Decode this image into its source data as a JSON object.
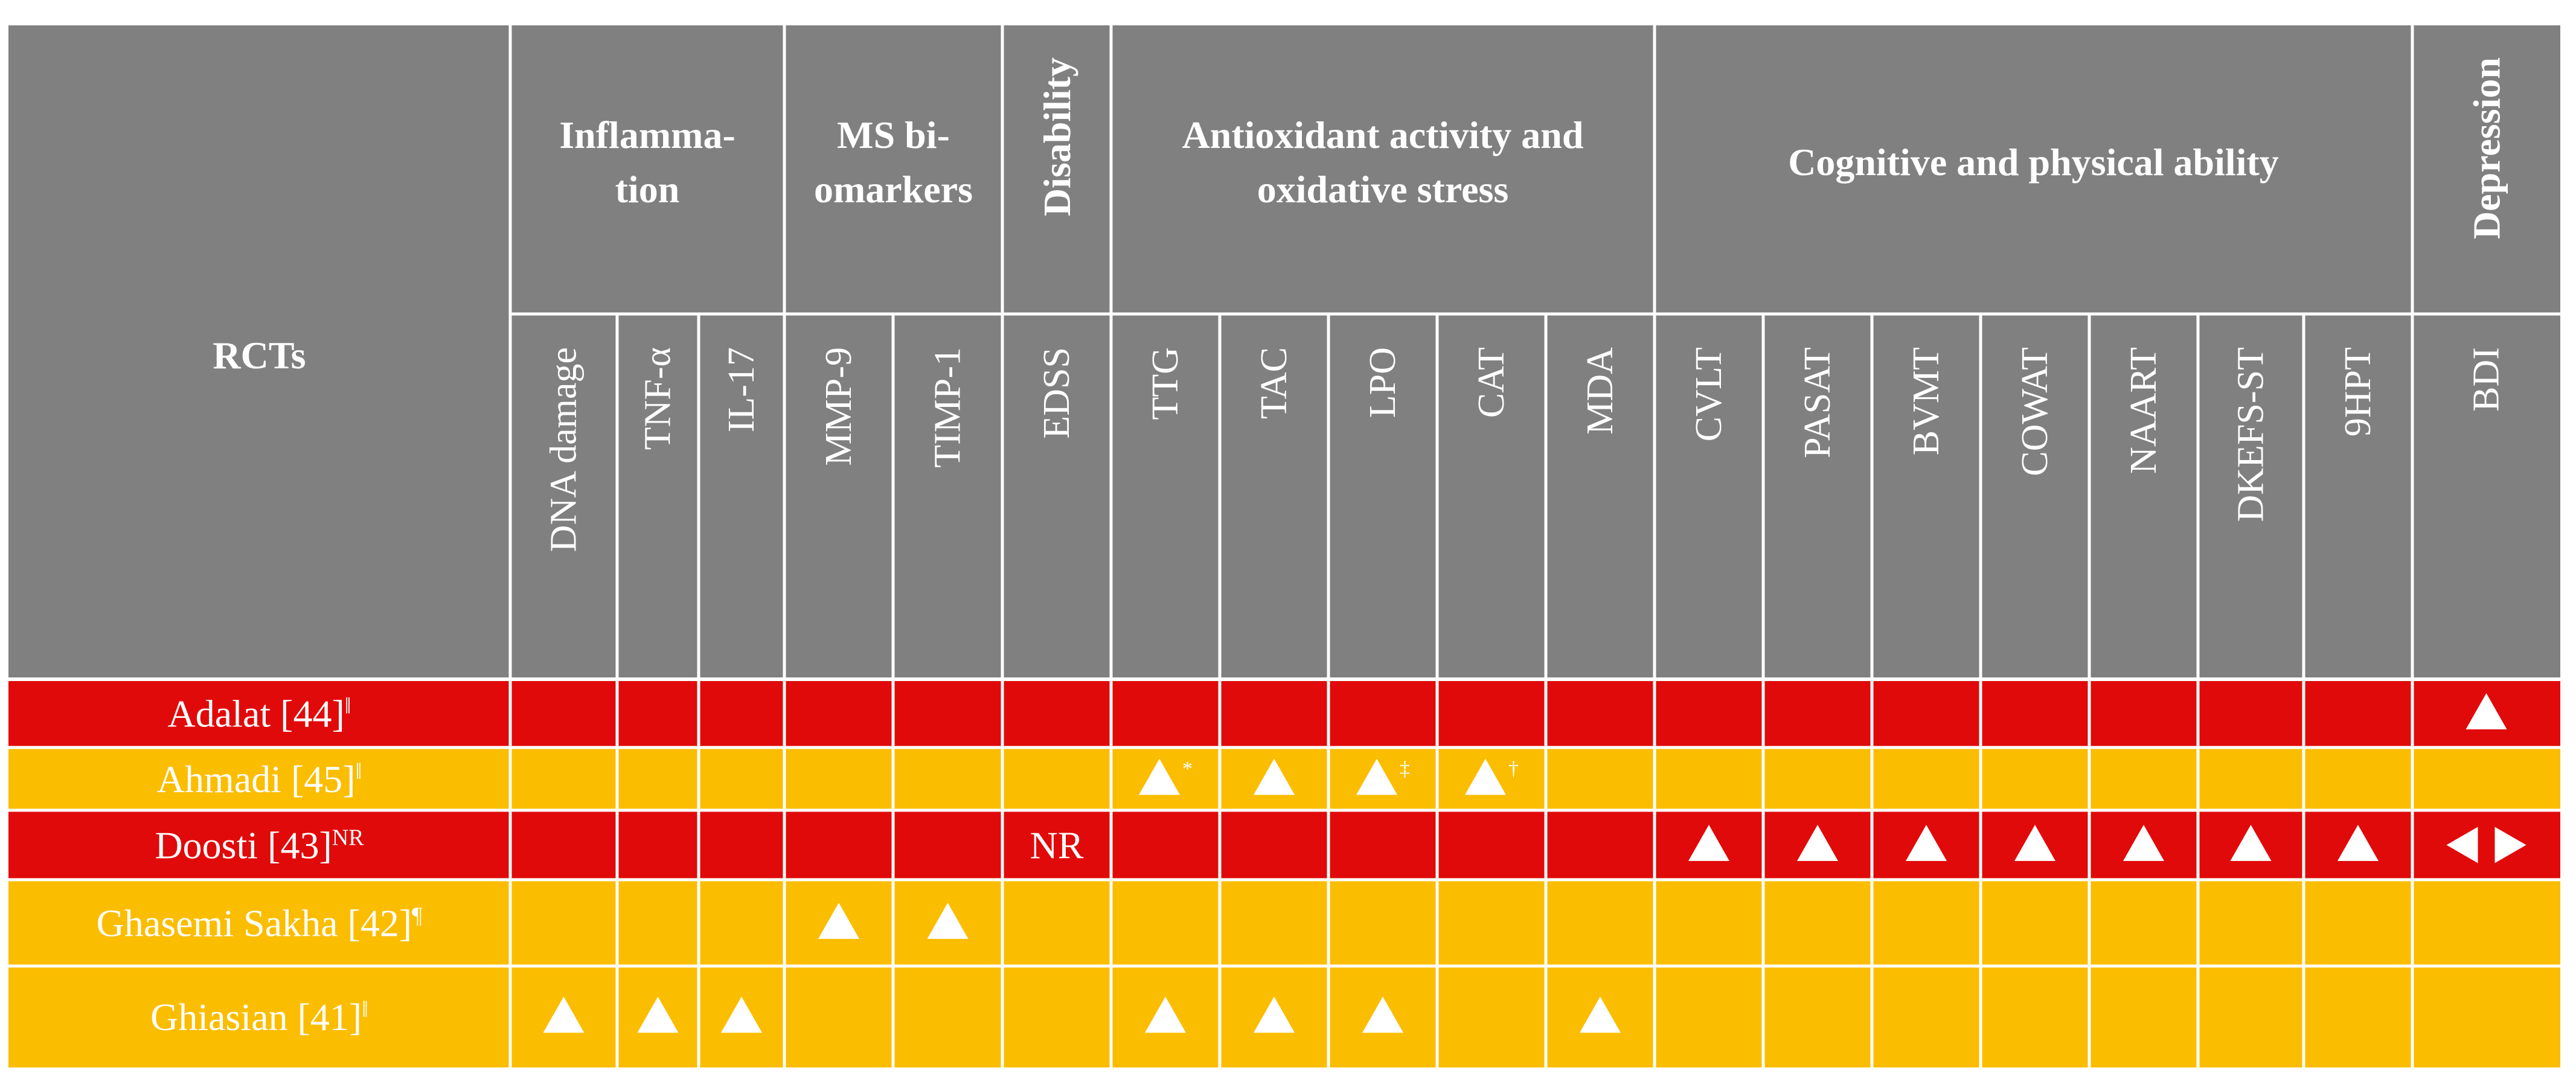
{
  "table": {
    "rcts_label": "RCTs",
    "groups": [
      {
        "key": "inflammation",
        "lines": [
          "Inflamma-",
          "tion"
        ]
      },
      {
        "key": "ms_biomarkers",
        "lines": [
          "MS bi-",
          "omarkers"
        ]
      },
      {
        "key": "disability",
        "lines": [
          "Disability"
        ]
      },
      {
        "key": "antioxidant",
        "lines": [
          "Antioxidant activity and",
          "oxidative stress"
        ]
      },
      {
        "key": "cognitive",
        "lines": [
          "Cognitive and physical ability"
        ]
      },
      {
        "key": "depression",
        "lines": [
          "Depression"
        ]
      }
    ],
    "columns": [
      "DNA damage",
      "TNF-α",
      "IL-17",
      "MMP-9",
      "TIMP-1",
      "EDSS",
      "TTG",
      "TAC",
      "LPO",
      "CAT",
      "MDA",
      "CVLT",
      "PASAT",
      "BVMT",
      "COWAT",
      "NAART",
      "DKEFS-ST",
      "9HPT",
      "BDI"
    ],
    "rows": [
      {
        "name": "Adalat [44]",
        "mark": "‖",
        "color": "#e10a0a",
        "cells": [
          "",
          "",
          "",
          "",
          "",
          "",
          "",
          "",
          "",
          "",
          "",
          "",
          "",
          "",
          "",
          "",
          "",
          "",
          "up"
        ]
      },
      {
        "name": "Ahmadi [45]",
        "mark": "‖",
        "color": "#fbbd00",
        "cells": [
          "",
          "",
          "",
          "",
          "",
          "",
          "up*",
          "up",
          "up‡",
          "up†",
          "",
          "",
          "",
          "",
          "",
          "",
          "",
          "",
          ""
        ]
      },
      {
        "name": "Doosti [43]",
        "mark": "NR",
        "color": "#e10a0a",
        "cells": [
          "",
          "",
          "",
          "",
          "",
          "NR",
          "",
          "",
          "",
          "",
          "",
          "up",
          "up",
          "up",
          "up",
          "up",
          "up",
          "up",
          "lr"
        ]
      },
      {
        "name": "Ghasemi Sakha [42]",
        "mark": "¶",
        "color": "#fbbd00",
        "cells": [
          "",
          "",
          "",
          "up",
          "up",
          "",
          "",
          "",
          "",
          "",
          "",
          "",
          "",
          "",
          "",
          "",
          "",
          "",
          ""
        ]
      },
      {
        "name": "Ghiasian [41]",
        "mark": "‖",
        "color": "#fbbd00",
        "cells": [
          "up",
          "up",
          "up",
          "",
          "",
          "",
          "up",
          "up",
          "up",
          "",
          "up",
          "",
          "",
          "",
          "",
          "",
          "",
          "",
          ""
        ]
      }
    ],
    "colors": {
      "header": "#808080",
      "red": "#e10a0a",
      "yellow": "#fbbd00",
      "line": "#ffffff"
    }
  }
}
